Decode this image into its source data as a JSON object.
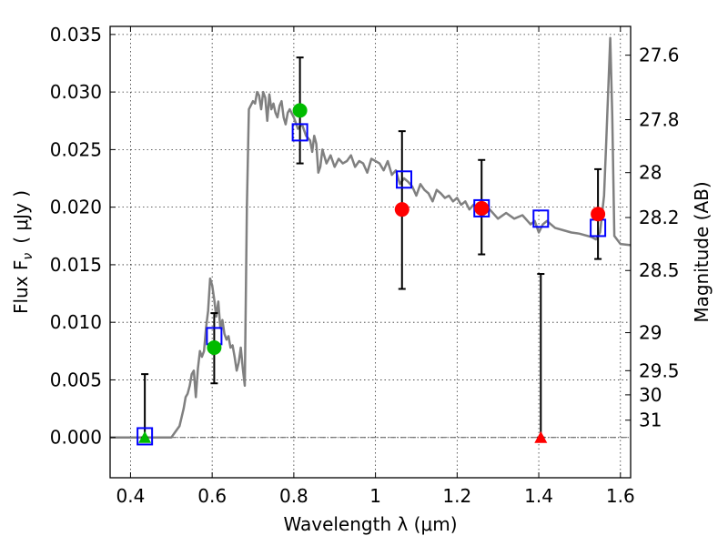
{
  "chart_data": {
    "type": "scatter",
    "xlabel": "Wavelength  λ (μm)",
    "ylabel": "Flux  F",
    "ylabel_sub": "ν",
    "ylabel_unit": "( μJy )",
    "y2label": "Magnitude (AB)",
    "xlim": [
      0.35,
      1.625
    ],
    "ylim": [
      -0.0035,
      0.0357
    ],
    "x_ticks": [
      0.4,
      0.6,
      0.8,
      1.0,
      1.2,
      1.4,
      1.6
    ],
    "x_tick_labels": [
      "0.4",
      "0.6",
      "0.8",
      "1",
      "1.2",
      "1.4",
      "1.6"
    ],
    "y_ticks": [
      0.0,
      0.005,
      0.01,
      0.015,
      0.02,
      0.025,
      0.03,
      0.035
    ],
    "y_tick_labels": [
      "0.000",
      "0.005",
      "0.010",
      "0.015",
      "0.020",
      "0.025",
      "0.030",
      "0.035"
    ],
    "y2_ticks": [
      {
        "label": "27.6",
        "flux": 0.0332
      },
      {
        "label": "27.8",
        "flux": 0.0276
      },
      {
        "label": "28",
        "flux": 0.023
      },
      {
        "label": "28.2",
        "flux": 0.0191
      },
      {
        "label": "28.5",
        "flux": 0.0145
      },
      {
        "label": "29",
        "flux": 0.0091
      },
      {
        "label": "29.5",
        "flux": 0.0058
      },
      {
        "label": "30",
        "flux": 0.0037
      },
      {
        "label": "31",
        "flux": 0.0015
      }
    ],
    "grid": true,
    "zero_line": true,
    "colors": {
      "model": "#808080",
      "box": "#0000ff",
      "green": "#00bb00",
      "red": "#ff0000",
      "errorbar": "#000000"
    },
    "model_sed": {
      "x": [
        0.35,
        0.5,
        0.51,
        0.52,
        0.53,
        0.535,
        0.54,
        0.545,
        0.55,
        0.555,
        0.56,
        0.565,
        0.57,
        0.575,
        0.58,
        0.585,
        0.59,
        0.595,
        0.6,
        0.605,
        0.61,
        0.615,
        0.62,
        0.625,
        0.63,
        0.635,
        0.64,
        0.645,
        0.65,
        0.655,
        0.66,
        0.665,
        0.67,
        0.675,
        0.68,
        0.685,
        0.69,
        0.7,
        0.705,
        0.71,
        0.715,
        0.72,
        0.725,
        0.73,
        0.735,
        0.74,
        0.745,
        0.75,
        0.755,
        0.76,
        0.765,
        0.77,
        0.775,
        0.78,
        0.785,
        0.79,
        0.8,
        0.81,
        0.82,
        0.83,
        0.84,
        0.845,
        0.85,
        0.855,
        0.86,
        0.865,
        0.87,
        0.88,
        0.89,
        0.9,
        0.91,
        0.92,
        0.93,
        0.94,
        0.95,
        0.96,
        0.97,
        0.98,
        0.99,
        1.0,
        1.01,
        1.02,
        1.03,
        1.04,
        1.05,
        1.06,
        1.07,
        1.08,
        1.09,
        1.1,
        1.11,
        1.12,
        1.13,
        1.14,
        1.15,
        1.16,
        1.17,
        1.18,
        1.19,
        1.2,
        1.21,
        1.22,
        1.23,
        1.24,
        1.25,
        1.26,
        1.27,
        1.28,
        1.3,
        1.32,
        1.34,
        1.36,
        1.38,
        1.39,
        1.4,
        1.41,
        1.42,
        1.44,
        1.46,
        1.48,
        1.5,
        1.52,
        1.53,
        1.54,
        1.55,
        1.56,
        1.565,
        1.57,
        1.575,
        1.58,
        1.585,
        1.6,
        1.625
      ],
      "y": [
        0.0,
        0.0,
        0.0005,
        0.001,
        0.0025,
        0.0035,
        0.0038,
        0.0045,
        0.0055,
        0.0058,
        0.0035,
        0.006,
        0.0075,
        0.007,
        0.0075,
        0.0095,
        0.011,
        0.0138,
        0.0132,
        0.012,
        0.0105,
        0.0118,
        0.0095,
        0.0102,
        0.009,
        0.0085,
        0.0088,
        0.0078,
        0.008,
        0.007,
        0.0058,
        0.0065,
        0.0078,
        0.006,
        0.0045,
        0.02,
        0.0285,
        0.0292,
        0.029,
        0.03,
        0.0297,
        0.0285,
        0.03,
        0.0295,
        0.0275,
        0.0298,
        0.0285,
        0.029,
        0.0282,
        0.0278,
        0.0288,
        0.0292,
        0.0278,
        0.0272,
        0.0282,
        0.0285,
        0.0278,
        0.0268,
        0.0272,
        0.0262,
        0.0258,
        0.0248,
        0.0262,
        0.0255,
        0.023,
        0.0235,
        0.025,
        0.0238,
        0.0245,
        0.0235,
        0.0242,
        0.0238,
        0.024,
        0.0245,
        0.0235,
        0.024,
        0.0238,
        0.023,
        0.0242,
        0.024,
        0.0238,
        0.0232,
        0.024,
        0.0228,
        0.0232,
        0.022,
        0.0225,
        0.0222,
        0.0218,
        0.021,
        0.022,
        0.0215,
        0.0212,
        0.0205,
        0.0215,
        0.0212,
        0.0208,
        0.021,
        0.0205,
        0.0208,
        0.0202,
        0.0205,
        0.0198,
        0.0202,
        0.0198,
        0.0192,
        0.0195,
        0.0198,
        0.019,
        0.0195,
        0.019,
        0.0193,
        0.0185,
        0.0188,
        0.0178,
        0.0185,
        0.0188,
        0.0182,
        0.018,
        0.0178,
        0.0177,
        0.0175,
        0.0174,
        0.0172,
        0.0178,
        0.021,
        0.0255,
        0.03,
        0.0347,
        0.028,
        0.0175,
        0.0168,
        0.0167
      ]
    },
    "synthetic_boxes": {
      "x": [
        0.435,
        0.605,
        0.815,
        1.07,
        1.26,
        1.405,
        1.545
      ],
      "y": [
        0.0001,
        0.0088,
        0.0265,
        0.0224,
        0.0199,
        0.019,
        0.0182
      ]
    },
    "detections_green": {
      "x": [
        0.605,
        0.815
      ],
      "y": [
        0.0078,
        0.0284
      ],
      "err_low": [
        0.0031,
        0.0046
      ],
      "err_high": [
        0.003,
        0.0046
      ]
    },
    "detections_red": {
      "x": [
        1.065,
        1.26,
        1.545
      ],
      "y": [
        0.0198,
        0.0199,
        0.0194
      ],
      "err_low": [
        0.0069,
        0.004,
        0.0039
      ],
      "err_high": [
        0.0068,
        0.0042,
        0.0039
      ]
    },
    "upper_limits": [
      {
        "x": 0.435,
        "y": 0.0,
        "err_high": 0.0055,
        "color": "green"
      },
      {
        "x": 1.405,
        "y": 0.0,
        "err_high": 0.0142,
        "color": "red"
      }
    ]
  }
}
